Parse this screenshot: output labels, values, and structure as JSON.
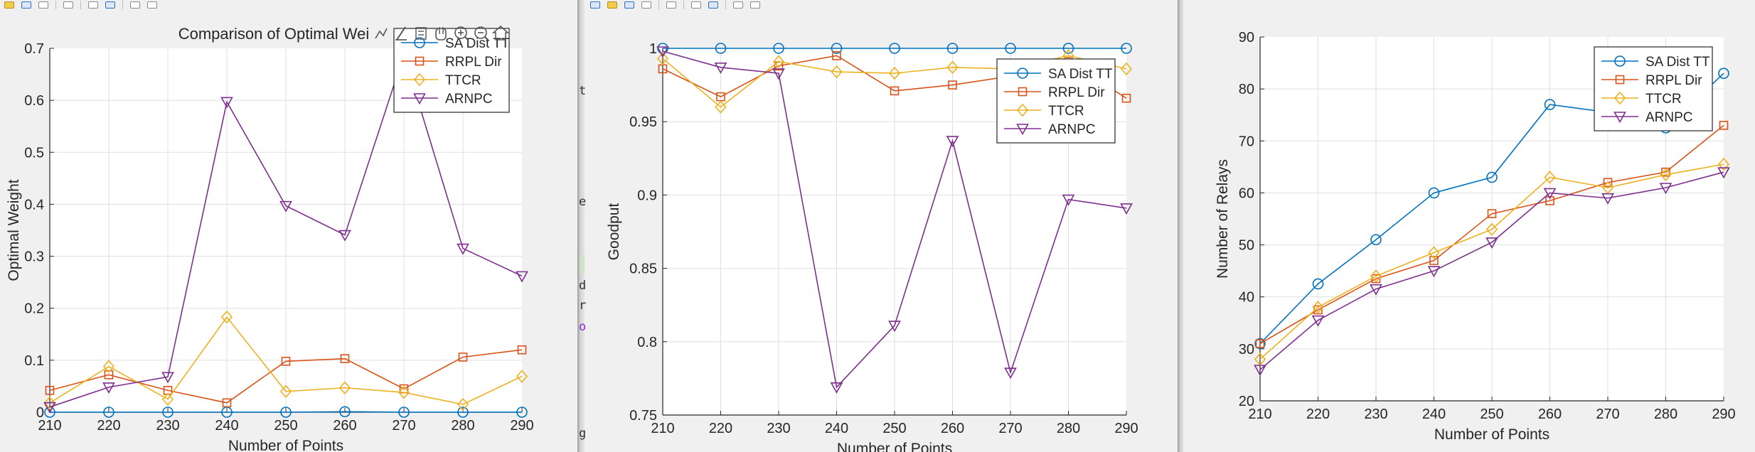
{
  "colors": {
    "series": [
      "#0072BD",
      "#D95319",
      "#EDB120",
      "#7E2F8E"
    ],
    "grid": "#dfdfdf",
    "axis": "#262626"
  },
  "fig1": {
    "title_visible": "Comparison of Optimal Wei",
    "axes_toolbar_icons": [
      "data-tips-icon",
      "brush-icon",
      "legend-icon",
      "pan-hand-icon",
      "zoom-in-icon",
      "zoom-out-icon",
      "home-icon"
    ],
    "chart_data": {
      "type": "line",
      "title": "Comparison of Optimal Wei",
      "xlabel": "Number of Points",
      "ylabel": "Optimal Weight",
      "x": [
        210,
        220,
        230,
        240,
        250,
        260,
        270,
        280,
        290
      ],
      "xlim": [
        210,
        290
      ],
      "ylim": [
        0,
        0.7
      ],
      "xticks": [
        "210",
        "220",
        "230",
        "240",
        "250",
        "260",
        "270",
        "280",
        "290"
      ],
      "yticks": [
        "0",
        "0.1",
        "0.2",
        "0.3",
        "0.4",
        "0.5",
        "0.6",
        "0.7"
      ],
      "grid": true,
      "legend_position": "top-right",
      "series": [
        {
          "name": "SA Dist TT",
          "marker": "circle",
          "values": [
            0,
            0,
            0,
            0,
            0,
            0.001,
            0,
            0,
            0
          ]
        },
        {
          "name": "RRPL Dir",
          "marker": "square",
          "values": [
            0.042,
            0.072,
            0.042,
            0.018,
            0.098,
            0.103,
            0.045,
            0.106,
            0.12
          ]
        },
        {
          "name": "TTCR",
          "marker": "diamond",
          "values": [
            0.018,
            0.088,
            0.025,
            0.183,
            0.04,
            0.047,
            0.038,
            0.015,
            0.069
          ]
        },
        {
          "name": "ARNPC",
          "marker": "triangle-down",
          "values": [
            0.01,
            0.048,
            0.068,
            0.597,
            0.397,
            0.341,
            0.688,
            0.315,
            0.262
          ]
        }
      ]
    }
  },
  "fig2": {
    "chart_data": {
      "type": "line",
      "xlabel": "Number of Points",
      "ylabel": "Goodput",
      "x": [
        210,
        220,
        230,
        240,
        250,
        260,
        270,
        280,
        290
      ],
      "xlim": [
        210,
        290
      ],
      "ylim": [
        0.75,
        1
      ],
      "xticks": [
        "210",
        "220",
        "230",
        "240",
        "250",
        "260",
        "270",
        "280",
        "290"
      ],
      "yticks": [
        "0.75",
        "0.8",
        "0.85",
        "0.9",
        "0.95",
        "1"
      ],
      "grid": true,
      "legend_position": "top-right",
      "series": [
        {
          "name": "SA Dist TT",
          "marker": "circle",
          "values": [
            1,
            1,
            1,
            1,
            1,
            1,
            1,
            1,
            1
          ]
        },
        {
          "name": "RRPL Dir",
          "marker": "square",
          "values": [
            0.986,
            0.967,
            0.988,
            0.995,
            0.971,
            0.975,
            0.981,
            0.991,
            0.966
          ]
        },
        {
          "name": "TTCR",
          "marker": "diamond",
          "values": [
            0.993,
            0.96,
            0.991,
            0.984,
            0.983,
            0.987,
            0.986,
            0.995,
            0.986
          ]
        },
        {
          "name": "ARNPC",
          "marker": "triangle-down",
          "values": [
            0.998,
            0.987,
            0.983,
            0.769,
            0.811,
            0.937,
            0.779,
            0.897,
            0.891
          ]
        }
      ]
    }
  },
  "fig3": {
    "chart_data": {
      "type": "line",
      "xlabel": "Number of Points",
      "ylabel": "Number of Relays",
      "x": [
        210,
        220,
        230,
        240,
        250,
        260,
        270,
        280,
        290
      ],
      "xlim": [
        210,
        290
      ],
      "ylim": [
        20,
        90
      ],
      "xticks": [
        "210",
        "220",
        "230",
        "240",
        "250",
        "260",
        "270",
        "280",
        "290"
      ],
      "yticks": [
        "20",
        "30",
        "40",
        "50",
        "60",
        "70",
        "80",
        "90"
      ],
      "grid": true,
      "legend_position": "top-right",
      "series": [
        {
          "name": "SA Dist TT",
          "marker": "circle",
          "values": [
            31,
            42.5,
            51,
            60,
            63,
            77,
            75.5,
            72.5,
            83
          ]
        },
        {
          "name": "RRPL Dir",
          "marker": "square",
          "values": [
            31,
            37.5,
            43.5,
            47,
            56,
            58.5,
            62,
            64,
            73
          ]
        },
        {
          "name": "TTCR",
          "marker": "diamond",
          "values": [
            28,
            38,
            44,
            48.5,
            53,
            63,
            61,
            63.5,
            65.5
          ]
        },
        {
          "name": "ARNPC",
          "marker": "triangle-down",
          "values": [
            26,
            35.5,
            41.5,
            45,
            50.5,
            60,
            59,
            61,
            64
          ]
        }
      ]
    }
  },
  "background_text": {
    "fragments": [
      "t",
      "e",
      "d",
      "r",
      "o",
      "g"
    ]
  }
}
